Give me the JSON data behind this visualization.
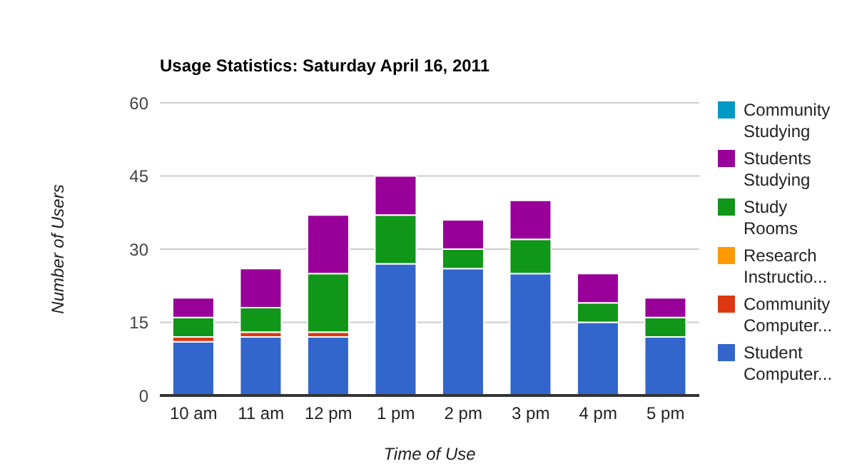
{
  "chart_data": {
    "type": "bar",
    "title": "Usage Statistics: Saturday April 16, 2011",
    "xlabel": "Time of Use",
    "ylabel": "Number of Users",
    "categories": [
      "10 am",
      "11 am",
      "12 pm",
      "1 pm",
      "2 pm",
      "3 pm",
      "4 pm",
      "5 pm"
    ],
    "stacked": true,
    "ylim": [
      0,
      60
    ],
    "yticks": [
      0,
      15,
      30,
      45,
      60
    ],
    "grid": "y",
    "legend": "right",
    "series": [
      {
        "name": "Student Computer...",
        "color": "#3366cc",
        "values": [
          11,
          12,
          12,
          27,
          26,
          25,
          15,
          12
        ]
      },
      {
        "name": "Community Computer...",
        "color": "#dc3912",
        "values": [
          1,
          1,
          1,
          0,
          0,
          0,
          0,
          0
        ]
      },
      {
        "name": "Research Instructio...",
        "color": "#ff9900",
        "values": [
          0,
          0,
          0,
          0,
          0,
          0,
          0,
          0
        ]
      },
      {
        "name": "Study Rooms",
        "color": "#109618",
        "values": [
          4,
          5,
          12,
          10,
          4,
          7,
          4,
          4
        ]
      },
      {
        "name": "Students Studying",
        "color": "#990099",
        "values": [
          4,
          8,
          12,
          8,
          6,
          8,
          6,
          4
        ]
      },
      {
        "name": "Community Studying",
        "color": "#0099c6",
        "values": [
          0,
          0,
          0,
          0,
          0,
          0,
          0,
          0
        ]
      }
    ]
  }
}
